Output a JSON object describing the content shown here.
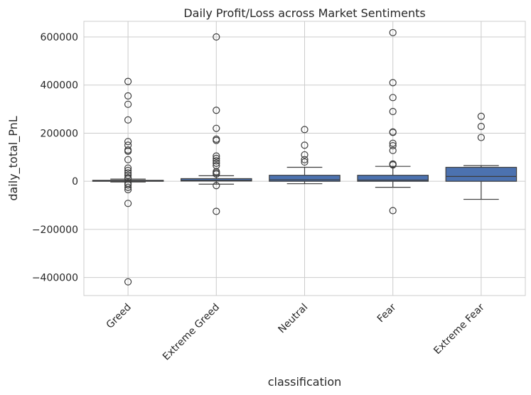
{
  "chart_data": {
    "type": "box",
    "title": "Daily Profit/Loss across Market Sentiments",
    "xlabel": "classification",
    "ylabel": "daily_total_PnL",
    "ylim": [
      -475000,
      665000
    ],
    "yticks": [
      600000,
      400000,
      200000,
      0,
      -200000,
      -400000
    ],
    "ytick_labels": [
      "600000",
      "400000",
      "200000",
      "0",
      "−200000",
      "−400000"
    ],
    "grid": true,
    "box_color": "#4c72b0",
    "categories": [
      "Greed",
      "Extreme Greed",
      "Neutral",
      "Fear",
      "Extreme Fear"
    ],
    "boxes": [
      {
        "category": "Greed",
        "whisker_low": -3000,
        "q1": 0,
        "median": 1000,
        "q3": 4000,
        "whisker_high": 9000,
        "outliers": [
          415000,
          355000,
          320000,
          255000,
          165000,
          150000,
          130000,
          125000,
          90000,
          55000,
          45000,
          35000,
          25000,
          15000,
          10000,
          -8000,
          -15000,
          -25000,
          -35000,
          -92000,
          -418000
        ]
      },
      {
        "category": "Extreme Greed",
        "whisker_low": -12000,
        "q1": 1000,
        "median": 4000,
        "q3": 11000,
        "whisker_high": 23000,
        "outliers": [
          600000,
          295000,
          220000,
          175000,
          170000,
          105000,
          95000,
          85000,
          75000,
          65000,
          40000,
          35000,
          30000,
          -18000,
          -125000
        ]
      },
      {
        "category": "Neutral",
        "whisker_low": -10000,
        "q1": 0,
        "median": 6000,
        "q3": 25000,
        "whisker_high": 58000,
        "outliers": [
          215000,
          150000,
          110000,
          90000,
          80000
        ]
      },
      {
        "category": "Fear",
        "whisker_low": -25000,
        "q1": 0,
        "median": 5000,
        "q3": 25000,
        "whisker_high": 62000,
        "outliers": [
          618000,
          410000,
          348000,
          290000,
          205000,
          203000,
          158000,
          148000,
          128000,
          72000,
          70000,
          68000,
          -122000
        ]
      },
      {
        "category": "Extreme Fear",
        "whisker_low": -75000,
        "q1": 0,
        "median": 20000,
        "q3": 58000,
        "whisker_high": 65000,
        "outliers": [
          270000,
          228000,
          182000
        ]
      }
    ]
  }
}
